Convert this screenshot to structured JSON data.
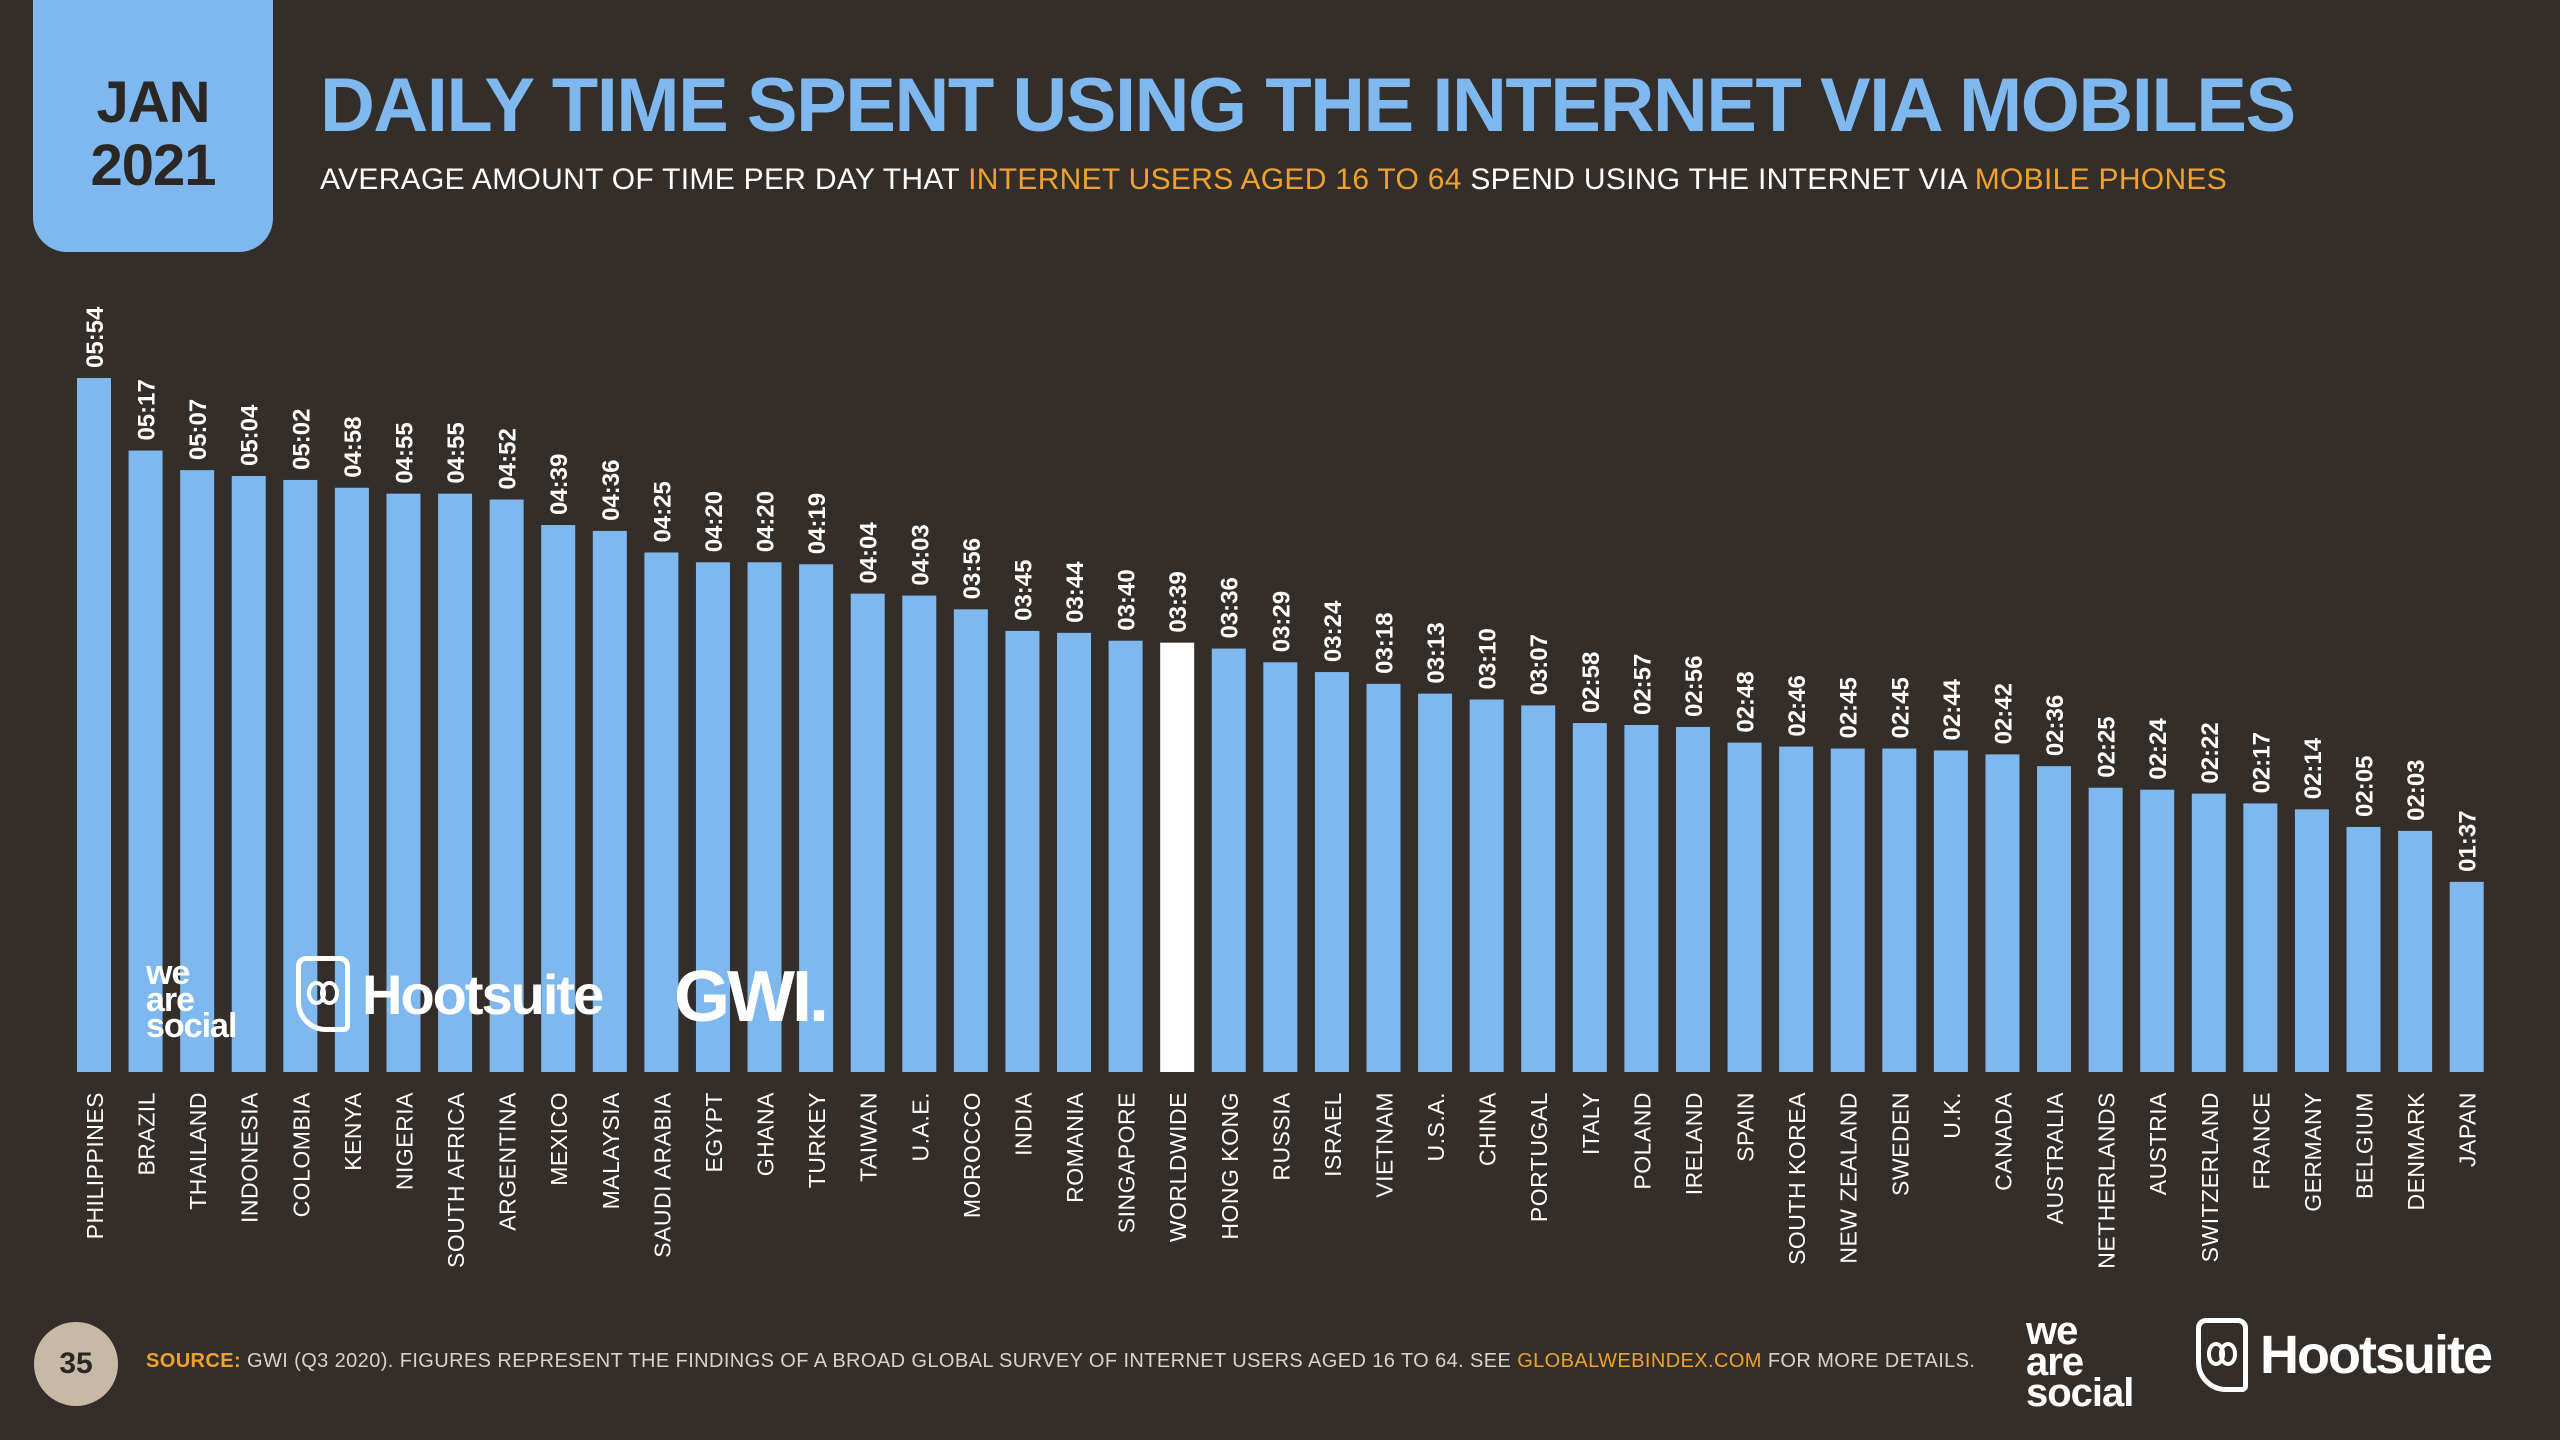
{
  "header": {
    "month": "JAN",
    "year": "2021",
    "title": "DAILY TIME SPENT USING THE INTERNET VIA MOBILES",
    "subtitle_1": "AVERAGE AMOUNT OF TIME PER DAY THAT ",
    "subtitle_hl_1": "INTERNET USERS AGED 16 TO 64",
    "subtitle_2": " SPEND USING THE INTERNET VIA ",
    "subtitle_hl_2": "MOBILE PHONES"
  },
  "brands": {
    "we": "we",
    "are": "are",
    "social": "social",
    "hootsuite": "Hootsuite",
    "gwi": "GWI."
  },
  "footer": {
    "page_number": "35",
    "source_label": "SOURCE:",
    "source_text": " GWI (Q3 2020). FIGURES REPRESENT THE FINDINGS OF A BROAD GLOBAL SURVEY OF INTERNET USERS AGED 16 TO 64. SEE ",
    "source_link": "GLOBALWEBINDEX.COM",
    "source_tail": " FOR MORE DETAILS."
  },
  "colors": {
    "background": "#332e2a",
    "bar": "#7fb8ee",
    "highlight_bar": "#ffffff",
    "accent": "#f0a12c",
    "text": "#ffffff"
  },
  "chart_data": {
    "type": "bar",
    "title": "",
    "xlabel": "",
    "ylabel": "",
    "unit": "hh:mm",
    "ylim": [
      0,
      354
    ],
    "grid": false,
    "highlight": "WORLDWIDE",
    "categories": [
      "PHILIPPINES",
      "BRAZIL",
      "THAILAND",
      "INDONESIA",
      "COLOMBIA",
      "KENYA",
      "NIGERIA",
      "SOUTH AFRICA",
      "ARGENTINA",
      "MEXICO",
      "MALAYSIA",
      "SAUDI ARABIA",
      "EGYPT",
      "GHANA",
      "TURKEY",
      "TAIWAN",
      "U.A.E.",
      "MOROCCO",
      "INDIA",
      "ROMANIA",
      "SINGAPORE",
      "WORLDWIDE",
      "HONG KONG",
      "RUSSIA",
      "ISRAEL",
      "VIETNAM",
      "U.S.A.",
      "CHINA",
      "PORTUGAL",
      "ITALY",
      "POLAND",
      "IRELAND",
      "SPAIN",
      "SOUTH KOREA",
      "NEW ZEALAND",
      "SWEDEN",
      "U.K.",
      "CANADA",
      "AUSTRALIA",
      "NETHERLANDS",
      "AUSTRIA",
      "SWITZERLAND",
      "FRANCE",
      "GERMANY",
      "BELGIUM",
      "DENMARK",
      "JAPAN"
    ],
    "labels": [
      "05:54",
      "05:17",
      "05:07",
      "05:04",
      "05:02",
      "04:58",
      "04:55",
      "04:55",
      "04:52",
      "04:39",
      "04:36",
      "04:25",
      "04:20",
      "04:20",
      "04:19",
      "04:04",
      "04:03",
      "03:56",
      "03:45",
      "03:44",
      "03:40",
      "03:39",
      "03:36",
      "03:29",
      "03:24",
      "03:18",
      "03:13",
      "03:10",
      "03:07",
      "02:58",
      "02:57",
      "02:56",
      "02:48",
      "02:46",
      "02:45",
      "02:45",
      "02:44",
      "02:42",
      "02:36",
      "02:25",
      "02:24",
      "02:22",
      "02:17",
      "02:14",
      "02:05",
      "02:03",
      "01:37"
    ],
    "values": [
      354,
      317,
      307,
      304,
      302,
      298,
      295,
      295,
      292,
      279,
      276,
      265,
      260,
      260,
      259,
      244,
      243,
      236,
      225,
      224,
      220,
      219,
      216,
      209,
      204,
      198,
      193,
      190,
      187,
      178,
      177,
      176,
      168,
      166,
      165,
      165,
      164,
      162,
      156,
      145,
      144,
      142,
      137,
      134,
      125,
      123,
      97
    ]
  }
}
